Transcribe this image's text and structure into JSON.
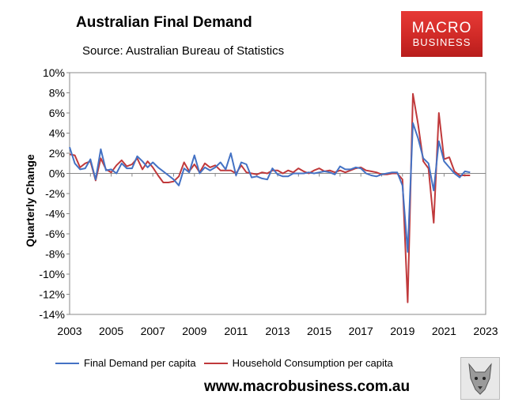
{
  "header": {
    "title": "Australian Final Demand",
    "subtitle": "Source: Australian Bureau of Statistics",
    "logo_line1": "MACRO",
    "logo_line2": "BUSINESS"
  },
  "footer": {
    "url": "www.macrobusiness.com.au"
  },
  "colors": {
    "final_demand": "#4472c4",
    "household": "#c0393b",
    "logo_bg": "#d12a27"
  },
  "chart_data": {
    "type": "line",
    "title": "Australian Final Demand",
    "xlabel": "",
    "ylabel": "Quarterly Change",
    "xlim": [
      2003,
      2023
    ],
    "ylim": [
      -14,
      10
    ],
    "yticks": [
      "10%",
      "8%",
      "6%",
      "4%",
      "2%",
      "0%",
      "-2%",
      "-4%",
      "-6%",
      "-8%",
      "-10%",
      "-12%",
      "-14%"
    ],
    "xticks": [
      "2003",
      "2005",
      "2007",
      "2009",
      "2011",
      "2013",
      "2015",
      "2017",
      "2019",
      "2021",
      "2023"
    ],
    "legend_position": "bottom",
    "series": [
      {
        "name": "Final Demand per capita",
        "color": "#4472c4",
        "x": [
          2003.0,
          2003.25,
          2003.5,
          2003.75,
          2004.0,
          2004.25,
          2004.5,
          2004.75,
          2005.0,
          2005.25,
          2005.5,
          2005.75,
          2006.0,
          2006.25,
          2006.5,
          2006.75,
          2007.0,
          2007.25,
          2007.5,
          2007.75,
          2008.0,
          2008.25,
          2008.5,
          2008.75,
          2009.0,
          2009.25,
          2009.5,
          2009.75,
          2010.0,
          2010.25,
          2010.5,
          2010.75,
          2011.0,
          2011.25,
          2011.5,
          2011.75,
          2012.0,
          2012.25,
          2012.5,
          2012.75,
          2013.0,
          2013.25,
          2013.5,
          2013.75,
          2014.0,
          2014.25,
          2014.5,
          2014.75,
          2015.0,
          2015.25,
          2015.5,
          2015.75,
          2016.0,
          2016.25,
          2016.5,
          2016.75,
          2017.0,
          2017.25,
          2017.5,
          2017.75,
          2018.0,
          2018.25,
          2018.5,
          2018.75,
          2019.0,
          2019.25,
          2019.5,
          2019.75,
          2020.0,
          2020.25,
          2020.5,
          2020.75,
          2021.0,
          2021.25,
          2021.5,
          2021.75,
          2022.0,
          2022.25
        ],
        "values": [
          2.6,
          1.0,
          0.4,
          0.5,
          1.4,
          -0.6,
          2.4,
          0.3,
          0.4,
          0.0,
          1.0,
          0.5,
          0.5,
          1.7,
          1.2,
          0.6,
          1.1,
          0.6,
          0.2,
          -0.2,
          -0.6,
          -1.2,
          0.5,
          0.1,
          1.8,
          0.0,
          0.6,
          0.3,
          0.6,
          1.1,
          0.4,
          2.0,
          -0.2,
          1.1,
          0.9,
          -0.4,
          -0.3,
          -0.5,
          -0.6,
          0.5,
          -0.1,
          -0.3,
          -0.3,
          0.0,
          0.0,
          0.0,
          0.1,
          0.0,
          0.1,
          0.2,
          0.1,
          -0.1,
          0.7,
          0.4,
          0.4,
          0.6,
          0.5,
          0.0,
          -0.2,
          -0.3,
          -0.1,
          0.0,
          0.1,
          0.1,
          -1.2,
          -7.8,
          5.0,
          3.5,
          1.5,
          1.0,
          -1.7,
          3.2,
          1.2,
          0.6,
          0.0,
          -0.4,
          0.2,
          0.1
        ]
      },
      {
        "name": "Household Consumption per capita",
        "color": "#c0393b",
        "x": [
          2003.0,
          2003.25,
          2003.5,
          2003.75,
          2004.0,
          2004.25,
          2004.5,
          2004.75,
          2005.0,
          2005.25,
          2005.5,
          2005.75,
          2006.0,
          2006.25,
          2006.5,
          2006.75,
          2007.0,
          2007.25,
          2007.5,
          2007.75,
          2008.0,
          2008.25,
          2008.5,
          2008.75,
          2009.0,
          2009.25,
          2009.5,
          2009.75,
          2010.0,
          2010.25,
          2010.5,
          2010.75,
          2011.0,
          2011.25,
          2011.5,
          2011.75,
          2012.0,
          2012.25,
          2012.5,
          2012.75,
          2013.0,
          2013.25,
          2013.5,
          2013.75,
          2014.0,
          2014.25,
          2014.5,
          2014.75,
          2015.0,
          2015.25,
          2015.5,
          2015.75,
          2016.0,
          2016.25,
          2016.5,
          2016.75,
          2017.0,
          2017.25,
          2017.5,
          2017.75,
          2018.0,
          2018.25,
          2018.5,
          2018.75,
          2019.0,
          2019.25,
          2019.5,
          2019.75,
          2020.0,
          2020.25,
          2020.5,
          2020.75,
          2021.0,
          2021.25,
          2021.5,
          2021.75,
          2022.0,
          2022.25
        ],
        "values": [
          1.9,
          1.8,
          0.6,
          1.0,
          1.2,
          -0.7,
          1.5,
          0.4,
          0.1,
          0.8,
          1.3,
          0.7,
          0.9,
          1.5,
          0.4,
          1.2,
          0.6,
          -0.2,
          -0.9,
          -0.9,
          -0.8,
          -0.3,
          1.1,
          0.2,
          0.9,
          0.1,
          1.0,
          0.6,
          0.8,
          0.3,
          0.3,
          0.3,
          0.0,
          0.8,
          0.1,
          0.0,
          -0.1,
          0.1,
          0.0,
          0.3,
          0.3,
          0.0,
          0.3,
          0.1,
          0.5,
          0.2,
          0.0,
          0.3,
          0.5,
          0.2,
          0.3,
          0.1,
          0.3,
          0.1,
          0.3,
          0.5,
          0.6,
          0.3,
          0.2,
          0.1,
          -0.1,
          -0.1,
          0.0,
          0.0,
          -0.6,
          -12.8,
          7.9,
          4.9,
          1.2,
          0.5,
          -4.9,
          6.0,
          1.4,
          1.6,
          0.2,
          -0.2,
          -0.2,
          -0.2
        ]
      }
    ]
  }
}
